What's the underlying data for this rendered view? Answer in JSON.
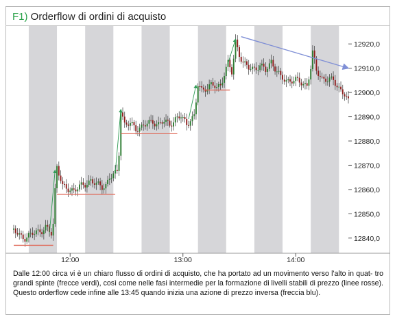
{
  "title": {
    "code": "F1)",
    "text": "Orderflow di ordini di acquisto"
  },
  "caption": "Dalle 12:00 circa vi è un chiaro flusso di ordini di acquisto, che ha portato ad un movimento verso l'alto in quat- tro grandi spinte (frecce verdi), così come nelle fasi intermedie per la formazione di livelli stabili di prezzo (linee rosse). Questo orderflow cede infine alle 13:45 quando inizia una azione di prezzo inversa (freccia blu).",
  "chart_data": {
    "type": "candlestick",
    "title": "Orderflow di ordini di acquisto",
    "ylim": [
      12836,
      12924
    ],
    "yticks": [
      12840,
      12850,
      12860,
      12870,
      12880,
      12890,
      12900,
      12910,
      12920
    ],
    "ytick_labels": [
      "12840,0",
      "12850,0",
      "12860,0",
      "12870,0",
      "12880,0",
      "12890,0",
      "12900,0",
      "12910,0",
      "12920,0"
    ],
    "xtick_labels": [
      {
        "label": "12:00",
        "minute": 720
      },
      {
        "label": "13:00",
        "minute": 780
      },
      {
        "label": "14:00",
        "minute": 840
      }
    ],
    "time_range": [
      690,
      868
    ],
    "shaded_bands_minutes": [
      [
        698,
        713
      ],
      [
        728,
        743
      ],
      [
        758,
        773
      ],
      [
        788,
        803
      ],
      [
        818,
        833
      ],
      [
        848,
        863
      ]
    ],
    "close_path": [
      [
        690,
        12843
      ],
      [
        692,
        12842
      ],
      [
        694,
        12841
      ],
      [
        696,
        12840
      ],
      [
        699,
        12841
      ],
      [
        702,
        12843
      ],
      [
        705,
        12843
      ],
      [
        707,
        12844
      ],
      [
        710,
        12842
      ],
      [
        711,
        12846
      ],
      [
        712,
        12860
      ],
      [
        713,
        12870
      ],
      [
        714,
        12867
      ],
      [
        716,
        12861
      ],
      [
        719,
        12860
      ],
      [
        722,
        12860
      ],
      [
        725,
        12861
      ],
      [
        728,
        12862
      ],
      [
        731,
        12864
      ],
      [
        734,
        12862
      ],
      [
        737,
        12861
      ],
      [
        739,
        12862
      ],
      [
        741,
        12865
      ],
      [
        743,
        12866
      ],
      [
        745,
        12867
      ],
      [
        746,
        12875
      ],
      [
        747,
        12893
      ],
      [
        749,
        12887
      ],
      [
        752,
        12887
      ],
      [
        755,
        12885
      ],
      [
        758,
        12886
      ],
      [
        761,
        12887
      ],
      [
        764,
        12888
      ],
      [
        767,
        12887
      ],
      [
        770,
        12888
      ],
      [
        773,
        12887
      ],
      [
        776,
        12889
      ],
      [
        779,
        12890
      ],
      [
        782,
        12887
      ],
      [
        784,
        12889
      ],
      [
        786,
        12890
      ],
      [
        787,
        12896
      ],
      [
        788,
        12903
      ],
      [
        790,
        12901
      ],
      [
        792,
        12902
      ],
      [
        795,
        12903
      ],
      [
        798,
        12902
      ],
      [
        800,
        12903
      ],
      [
        802,
        12908
      ],
      [
        804,
        12912
      ],
      [
        806,
        12908
      ],
      [
        807,
        12914
      ],
      [
        808,
        12921
      ],
      [
        810,
        12916
      ],
      [
        812,
        12912
      ],
      [
        815,
        12910
      ],
      [
        818,
        12910
      ],
      [
        821,
        12911
      ],
      [
        824,
        12909
      ],
      [
        827,
        12913
      ],
      [
        829,
        12910
      ],
      [
        832,
        12906
      ],
      [
        835,
        12905
      ],
      [
        838,
        12905
      ],
      [
        840,
        12905
      ],
      [
        843,
        12904
      ],
      [
        846,
        12903
      ],
      [
        848,
        12910
      ],
      [
        849,
        12916
      ],
      [
        851,
        12909
      ],
      [
        854,
        12906
      ],
      [
        857,
        12905
      ],
      [
        860,
        12905
      ],
      [
        862,
        12903
      ],
      [
        864,
        12901
      ],
      [
        866,
        12899
      ],
      [
        868,
        12896
      ]
    ],
    "support_levels": [
      {
        "from": 690,
        "to": 711,
        "price": 12837
      },
      {
        "from": 713,
        "to": 744,
        "price": 12858
      },
      {
        "from": 747,
        "to": 777,
        "price": 12883
      },
      {
        "from": 791,
        "to": 805,
        "price": 12901
      }
    ],
    "buy_pushes": [
      {
        "from": [
          709,
          12842
        ],
        "to": [
          712,
          12868
        ]
      },
      {
        "from": [
          744,
          12867
        ],
        "to": [
          747,
          12893
        ]
      },
      {
        "from": [
          783,
          12889
        ],
        "to": [
          787,
          12903
        ]
      },
      {
        "from": [
          804,
          12912
        ],
        "to": [
          808,
          12922
        ]
      }
    ],
    "reversal_arrow": {
      "from": [
        811,
        12923
      ],
      "to": [
        868,
        12910
      ]
    },
    "colors": {
      "bull": "#2e7d32",
      "bear": "#8f1d1d",
      "wick": "#333333",
      "band": "#d6d6d9",
      "support": "#e06b5b",
      "push": "#2f9a55",
      "reversal": "#7f8fd6"
    }
  }
}
